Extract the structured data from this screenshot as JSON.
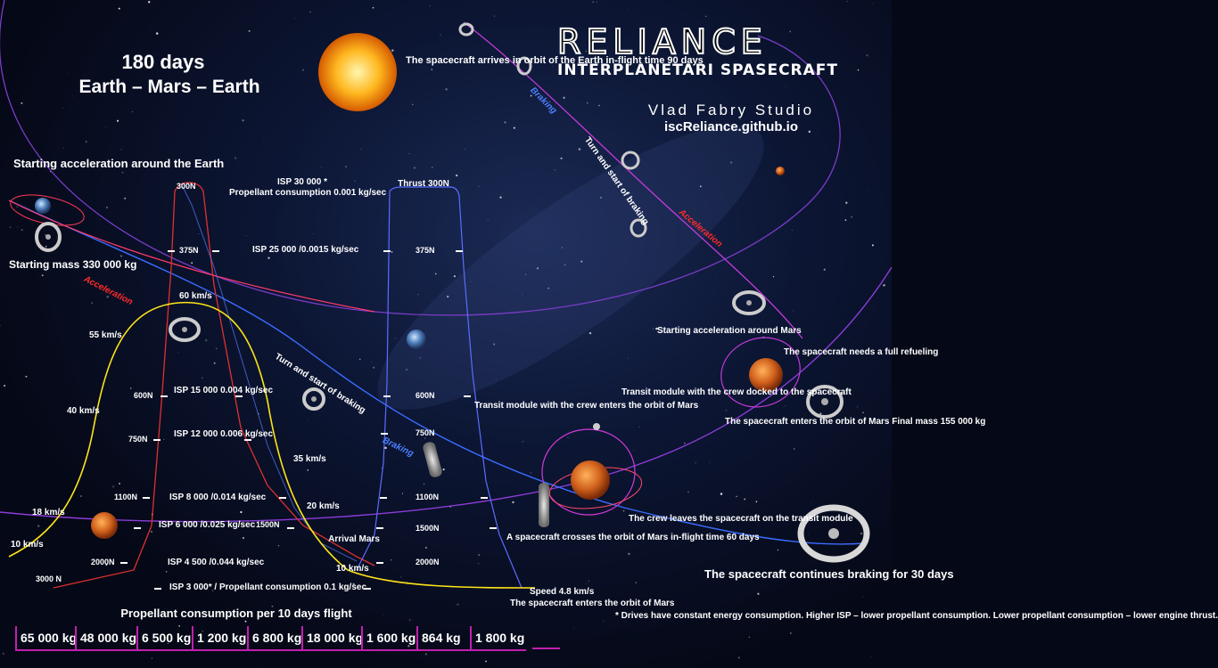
{
  "header": {
    "line1": "180 days",
    "line2": "Earth – Mars – Earth"
  },
  "brand": {
    "title": "RELIANCE",
    "subtitle": "INTERPLANETARI SPASECRAFT",
    "studio": "Vlad Fabry Studio",
    "website": "iscReliance.github.io"
  },
  "notes": {
    "arrives_earth": "The spacecraft arrives in orbit of the Earth in-flight time 90 days",
    "start_earth": "Starting acceleration around the Earth",
    "start_mass": "Starting mass 330 000 kg",
    "arrival_mars": "Arrival Mars",
    "transit_enters": "Transit module with the crew enters the orbit of Mars",
    "crosses_orbit": "A spacecraft crosses the orbit of Mars in-flight time 60 days",
    "enters_orbit": "The spacecraft enters the orbit of Mars",
    "crew_leaves": "The crew leaves the spacecraft on the transit module",
    "start_mars": "Starting acceleration around Mars",
    "refueling": "The spacecraft needs a full refueling",
    "docked": "Transit module with the crew docked to the spacecraft",
    "final_mass": "The spacecraft enters the orbit of Mars Final mass 155 000 kg",
    "continues_braking": "The spacecraft continues braking for 30 days",
    "footnote": "* Drives have constant energy consumption. Higher ISP – lower propellant consumption. Lower propellant consumption – lower engine thrust."
  },
  "isp": {
    "isp30000": "ISP 30 000 *",
    "isp30000_cons": "Propellant consumption 0.001 kg/sec",
    "isp25000": "ISP 25 000 /0.0015 kg/sec",
    "isp15000": "ISP 15 000 0.004 kg/sec",
    "isp12000": "ISP 12 000 0.006 kg/sec",
    "isp8000": "ISP 8 000 /0.014 kg/sec",
    "isp6000": "ISP 6 000 /0.025 kg/sec",
    "isp4500": "ISP 4 500 /0.044 kg/sec",
    "isp3000": "ISP 3 000* / Propellant consumption 0.1 kg/sec"
  },
  "thrust_labels": {
    "thrust_title": "Thrust 300N",
    "t300": "300N",
    "t375": "375N",
    "t600": "600N",
    "t750": "750N",
    "t1100": "1100N",
    "t1500": "1500N",
    "t2000": "2000N",
    "t3000": "3000 N"
  },
  "speeds": {
    "s60": "60 km/s",
    "s55": "55 km/s",
    "s40": "40 km/s",
    "s35": "35 km/s",
    "s20": "20 km/s",
    "s18": "18 km/s",
    "s10": "10 km/s",
    "final": "Speed 4.8 km/s"
  },
  "trajectory": {
    "acceleration": "Acceleration",
    "braking": "Braking",
    "turn_braking": "Turn and start of braking"
  },
  "consumption": {
    "title": "Propellant consumption per 10 days flight",
    "values": [
      "65 000 kg",
      "48 000 kg",
      "6 500 kg",
      "1 200 kg",
      "6 800 kg",
      "18 000 kg",
      "1 600 kg",
      "864 kg",
      "1 800 kg"
    ]
  },
  "colors": {
    "acceleration": "#ff2a2a",
    "braking": "#4d7fff",
    "velocity_curve": "#ffe418",
    "table_border": "#c21fb0"
  }
}
